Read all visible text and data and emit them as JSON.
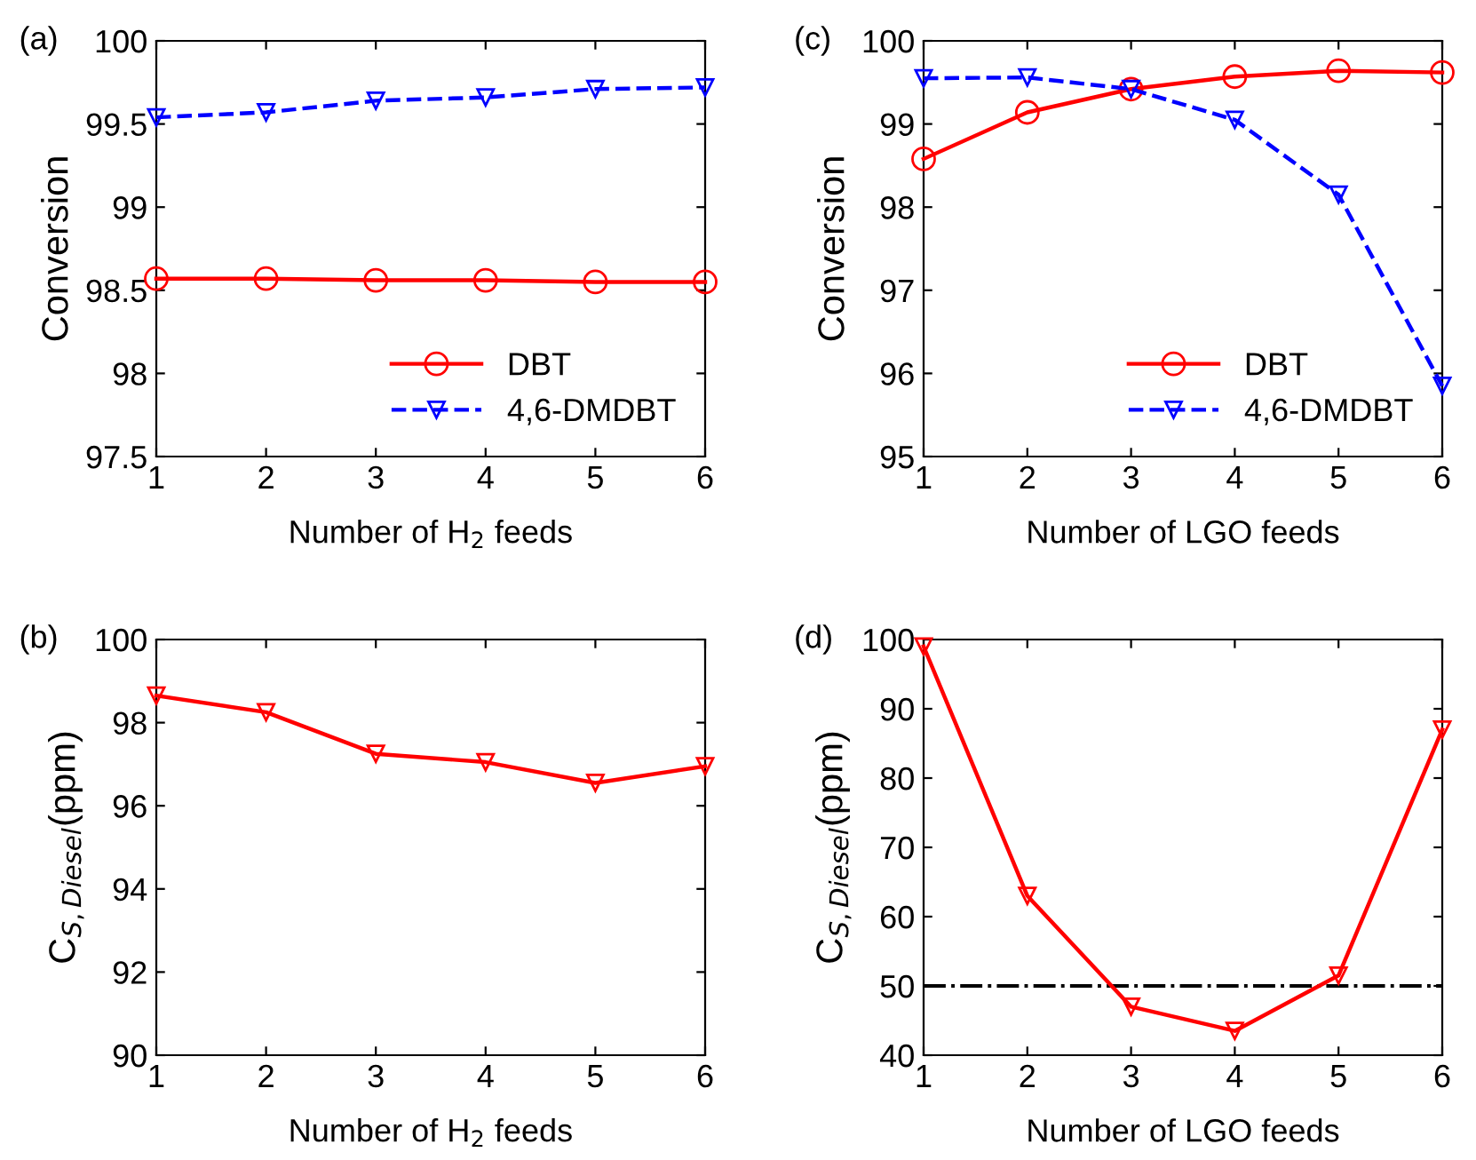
{
  "chart_data": [
    {
      "type": "line",
      "title": "(a)",
      "xlabel": "Number of H$_{2}$ feeds",
      "ylabel": "Conversion",
      "x": [
        1,
        2,
        3,
        4,
        5,
        6
      ],
      "xlim": [
        1,
        6
      ],
      "xticks": [
        1,
        2,
        3,
        4,
        5,
        6
      ],
      "ylim": [
        97.5,
        100
      ],
      "yticks": [
        97.5,
        98,
        98.5,
        99,
        99.5,
        100
      ],
      "grid": false,
      "legend": "bottom right",
      "series": [
        {
          "name": "DBT",
          "color": "#ff0000",
          "marker": "circle",
          "line_style": "solid",
          "values": [
            98.57,
            98.57,
            98.56,
            98.56,
            98.55,
            98.55
          ]
        },
        {
          "name": "4,6-DMDBT",
          "color": "#0000ff",
          "marker": "triangle",
          "line_style": "dashed",
          "values": [
            99.54,
            99.57,
            99.64,
            99.66,
            99.71,
            99.72
          ]
        }
      ]
    },
    {
      "type": "line",
      "title": "(c)",
      "xlabel": "Number of LGO feeds",
      "ylabel": "Conversion",
      "x": [
        1,
        2,
        3,
        4,
        5,
        6
      ],
      "xlim": [
        1,
        6
      ],
      "xticks": [
        1,
        2,
        3,
        4,
        5,
        6
      ],
      "ylim": [
        95,
        100
      ],
      "yticks": [
        95,
        96,
        97,
        98,
        99,
        100
      ],
      "grid": false,
      "legend": "bottom right",
      "series": [
        {
          "name": "DBT",
          "color": "#ff0000",
          "marker": "circle",
          "line_style": "solid",
          "values": [
            98.58,
            99.14,
            99.42,
            99.57,
            99.64,
            99.62
          ]
        },
        {
          "name": "4,6-DMDBT",
          "color": "#0000ff",
          "marker": "triangle",
          "line_style": "dashed",
          "values": [
            99.55,
            99.56,
            99.42,
            99.05,
            98.15,
            95.85
          ]
        }
      ]
    },
    {
      "type": "line",
      "title": "(b)",
      "xlabel": "Number of H$_{2}$ feeds",
      "ylabel": "C$_{S,Diesel}$(ppm)",
      "x": [
        1,
        2,
        3,
        4,
        5,
        6
      ],
      "xlim": [
        1,
        6
      ],
      "xticks": [
        1,
        2,
        3,
        4,
        5,
        6
      ],
      "ylim": [
        90,
        100
      ],
      "yticks": [
        90,
        92,
        94,
        96,
        98,
        100
      ],
      "grid": false,
      "series": [
        {
          "color": "#ff0000",
          "marker": "triangle",
          "line_style": "solid",
          "values": [
            98.65,
            98.25,
            97.25,
            97.05,
            96.55,
            96.95
          ]
        }
      ]
    },
    {
      "type": "line",
      "title": "(d)",
      "xlabel": "Number of LGO feeds",
      "ylabel": "C$_{S,Diesel}$(ppm)",
      "x": [
        1,
        2,
        3,
        4,
        5,
        6
      ],
      "xlim": [
        1,
        6
      ],
      "xticks": [
        1,
        2,
        3,
        4,
        5,
        6
      ],
      "ylim": [
        40,
        100
      ],
      "yticks": [
        40,
        50,
        60,
        70,
        80,
        90,
        100
      ],
      "grid": false,
      "ref_lines": [
        {
          "axis": "y",
          "value": 50,
          "color": "#000000",
          "line_style": "dashdot"
        }
      ],
      "series": [
        {
          "color": "#ff0000",
          "marker": "triangle",
          "line_style": "solid",
          "values": [
            99,
            63,
            47,
            43.5,
            51.5,
            87
          ]
        }
      ]
    }
  ]
}
